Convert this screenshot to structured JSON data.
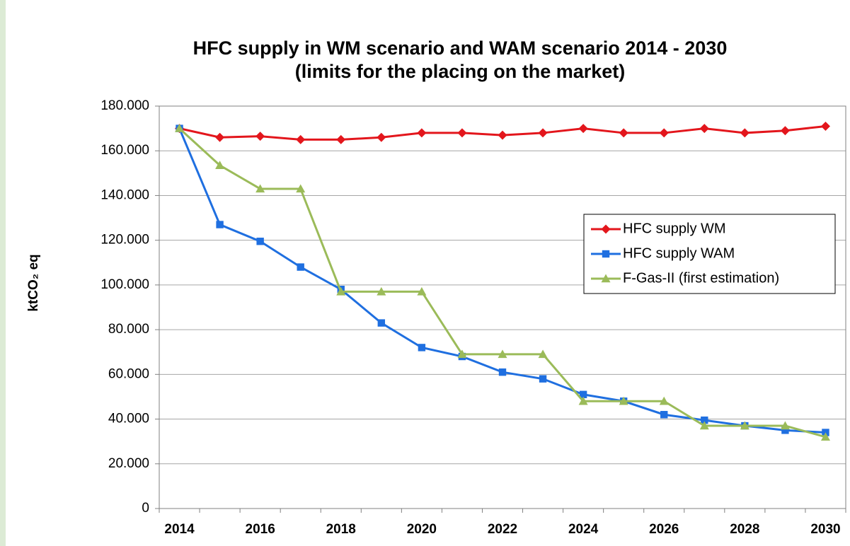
{
  "chart_data": {
    "type": "line",
    "title": "HFC supply in WM scenario and WAM scenario 2014 - 2030",
    "subtitle": "(limits for the placing on the market)",
    "y_label": "ktCO₂ eq",
    "categories": [
      "2014",
      null,
      "2016",
      null,
      "2018",
      null,
      "2020",
      null,
      "2022",
      null,
      "2024",
      null,
      "2026",
      null,
      "2028",
      null,
      "2030"
    ],
    "series": [
      {
        "name": "HFC supply WM",
        "color": "#e3161c",
        "marker": "diamond",
        "values": [
          170000,
          166000,
          166500,
          165000,
          165000,
          166000,
          168000,
          168000,
          167000,
          168000,
          170000,
          168000,
          168000,
          170000,
          168000,
          169000,
          171000
        ]
      },
      {
        "name": "HFC supply WAM",
        "color": "#1f6fe0",
        "marker": "square",
        "values": [
          170000,
          127000,
          119500,
          108000,
          98000,
          83000,
          72000,
          68000,
          61000,
          58000,
          51000,
          48000,
          42000,
          39500,
          37000,
          35000,
          34000
        ]
      },
      {
        "name": "F-Gas-II (first estimation)",
        "color": "#9bbb59",
        "marker": "triangle",
        "values": [
          170000,
          153500,
          143000,
          143000,
          97000,
          97000,
          97000,
          69000,
          69000,
          69000,
          48000,
          48000,
          48000,
          37000,
          37000,
          37000,
          32000
        ]
      }
    ],
    "ylim": [
      0,
      180000
    ],
    "yticks": [
      0,
      {
        "value": 20000,
        "label": "20.000"
      },
      {
        "value": 40000,
        "label": "40.000"
      },
      {
        "value": 60000,
        "label": "60.000"
      },
      {
        "value": 80000,
        "label": "80.000"
      },
      {
        "value": 100000,
        "label": "100.000"
      },
      {
        "value": 120000,
        "label": "120.000"
      },
      {
        "value": 140000,
        "label": "140.000"
      },
      {
        "value": 160000,
        "label": "160.000"
      },
      {
        "value": 180000,
        "label": "180.000"
      }
    ],
    "grid": true,
    "legend": "right"
  }
}
